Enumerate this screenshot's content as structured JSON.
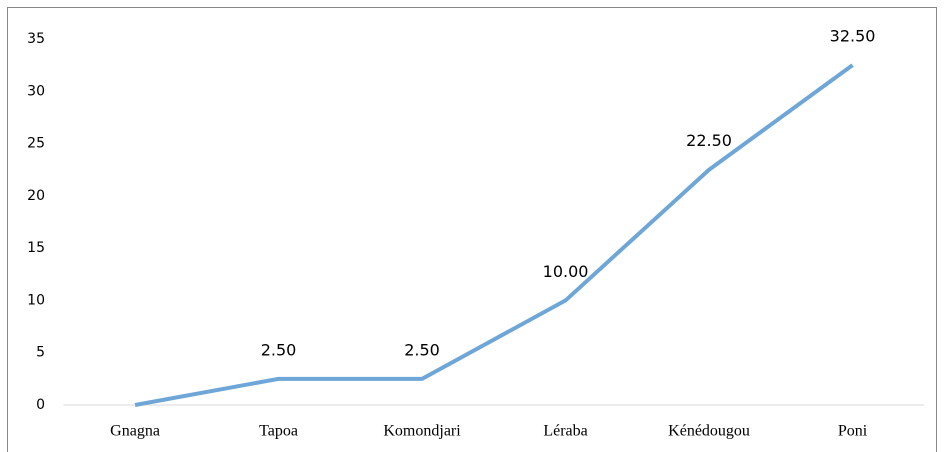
{
  "chart_data": {
    "type": "line",
    "categories": [
      "Gnagna",
      "Tapoa",
      "Komondjari",
      "Léraba",
      "Kénédougou",
      "Poni"
    ],
    "values": [
      0,
      2.5,
      2.5,
      10,
      22.5,
      32.5
    ],
    "value_labels": [
      null,
      "2.50",
      "2.50",
      "10.00",
      "22.50",
      "32.50"
    ],
    "color": "#6fa6d8",
    "ylim": [
      0,
      35
    ],
    "yticks": [
      0,
      5,
      10,
      15,
      20,
      25,
      30,
      35
    ],
    "grid": false
  }
}
